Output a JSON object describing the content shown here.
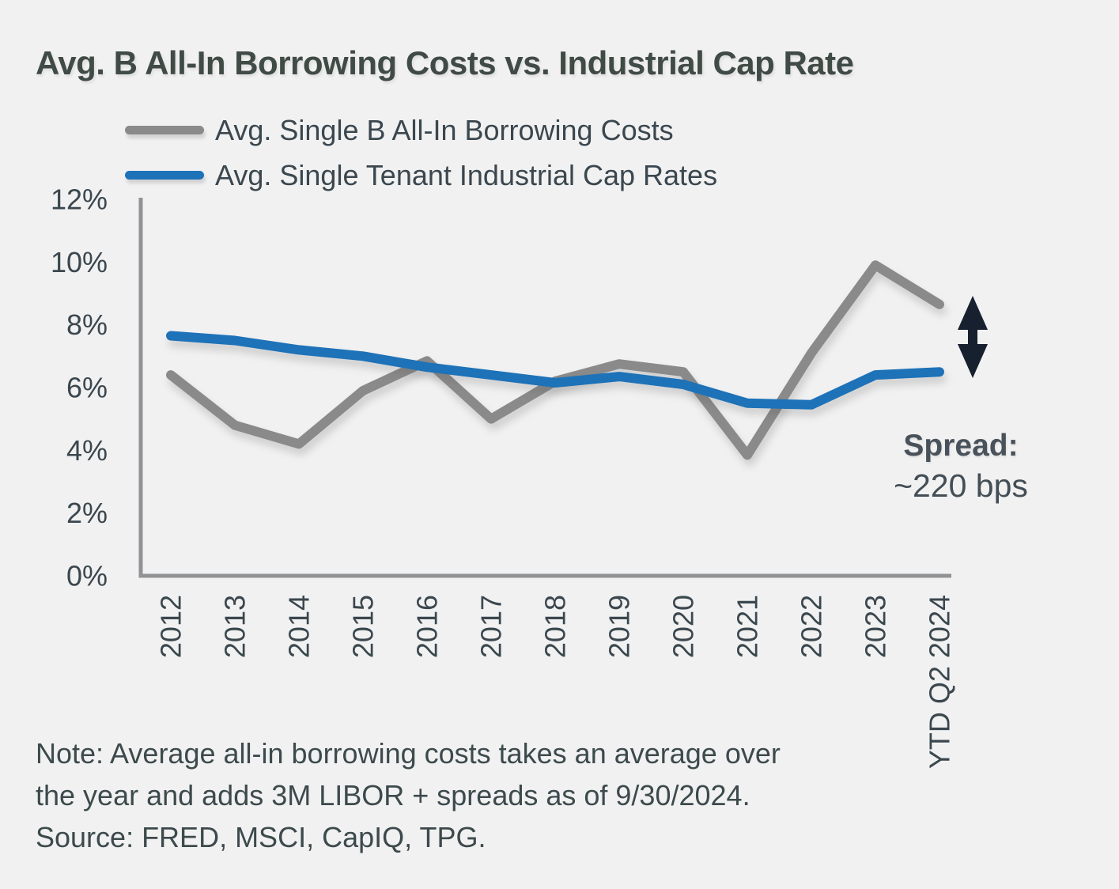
{
  "title": "Avg. B All-In Borrowing Costs vs. Industrial Cap Rate",
  "legend": [
    {
      "label": "Avg. Single B All-In Borrowing Costs",
      "color": "#8a8a8a"
    },
    {
      "label": "Avg. Single Tenant Industrial Cap Rates",
      "color": "#1d72b8"
    }
  ],
  "chart_data": {
    "type": "line",
    "title": "Avg. B All-In Borrowing Costs vs. Industrial Cap Rate",
    "xlabel": "",
    "ylabel": "",
    "categories": [
      "2012",
      "2013",
      "2014",
      "2015",
      "2016",
      "2017",
      "2018",
      "2019",
      "2020",
      "2021",
      "2022",
      "2023",
      "YTD Q2 2024"
    ],
    "series": [
      {
        "name": "Avg. Single B All-In Borrowing Costs",
        "color": "#8a8a8a",
        "values": [
          6.4,
          4.8,
          4.2,
          5.9,
          6.85,
          5.0,
          6.2,
          6.75,
          6.5,
          3.85,
          7.1,
          9.9,
          8.65
        ]
      },
      {
        "name": "Avg. Single Tenant Industrial Cap Rates",
        "color": "#1d72b8",
        "values": [
          7.65,
          7.5,
          7.2,
          7.0,
          6.65,
          6.4,
          6.15,
          6.35,
          6.1,
          5.5,
          5.45,
          6.4,
          6.5
        ]
      }
    ],
    "ylim": [
      0,
      12
    ],
    "yticks": [
      "0%",
      "2%",
      "4%",
      "6%",
      "8%",
      "10%",
      "12%"
    ],
    "ytick_values": [
      0,
      2,
      4,
      6,
      8,
      10,
      12
    ],
    "grid": false,
    "legend_position": "top-left"
  },
  "annotation": {
    "spread_label": "Spread:",
    "spread_value": "~220 bps",
    "spread_bps": 220,
    "arrow_color": "#16202e"
  },
  "note": {
    "line1": "Note: Average all-in borrowing costs takes an average over",
    "line2": "the year and adds 3M LIBOR + spreads as of 9/30/2024.",
    "line3": "Source: FRED, MSCI, CapIQ, TPG."
  },
  "colors": {
    "background": "#f1f1f2",
    "text": "#3b474e",
    "title": "#414b46",
    "axis": "#909294"
  }
}
